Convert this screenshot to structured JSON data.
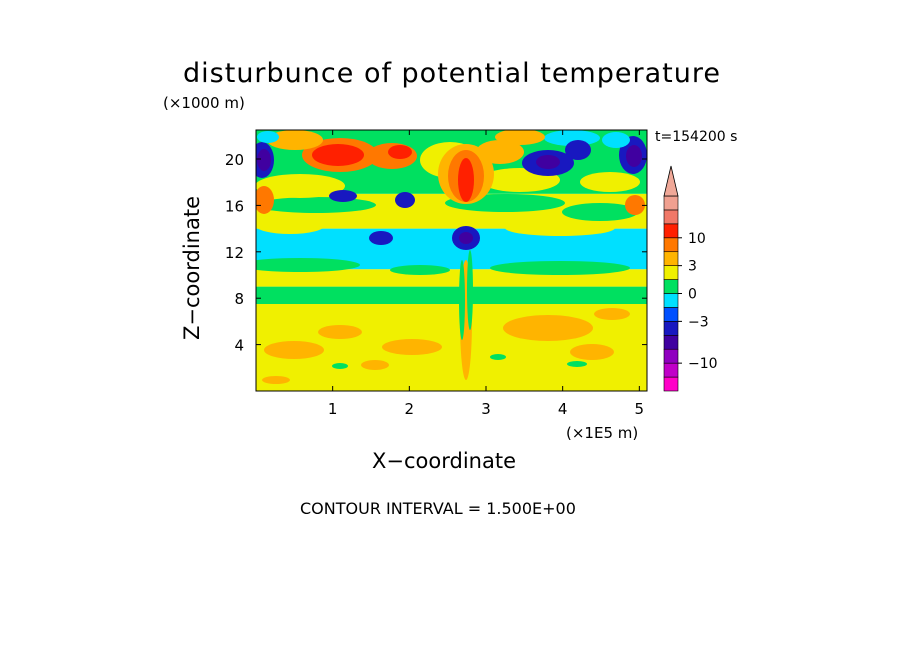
{
  "chart_data": {
    "type": "heatmap",
    "title": "disturbunce of potential temperature",
    "y_unit": "(×1000 m)",
    "x_unit": "(×1E5 m)",
    "xlabel": "X−coordinate",
    "ylabel": "Z−coordinate",
    "time_label": "t=154200 s",
    "footer": "CONTOUR INTERVAL = 1.500E+00",
    "x_ticks": [
      "1",
      "2",
      "3",
      "4",
      "5"
    ],
    "x_tick_values": [
      1,
      2,
      3,
      4,
      5
    ],
    "y_ticks": [
      "4",
      "8",
      "12",
      "16",
      "20"
    ],
    "y_tick_values": [
      4,
      8,
      12,
      16,
      20
    ],
    "xlim": [
      0,
      5.1
    ],
    "ylim": [
      0,
      22.5
    ],
    "contour_interval": 1.5,
    "colorbar": {
      "labels": [
        "10",
        "3",
        "0",
        "−3",
        "−10"
      ],
      "label_values": [
        10,
        3,
        0,
        -3,
        -10
      ],
      "levels": [
        -16.5,
        -12,
        -10.5,
        -7.5,
        -4.5,
        -3,
        -1.5,
        0,
        1.5,
        3,
        4.5,
        7.5,
        10.5,
        12,
        16.5
      ],
      "colors": [
        "#ff00c8",
        "#c000c8",
        "#9000c0",
        "#4000a0",
        "#1818c0",
        "#0050ff",
        "#00e0ff",
        "#00e060",
        "#f0f000",
        "#ffb400",
        "#ff7800",
        "#ff2000",
        "#f07868",
        "#f0a090",
        "#f0a898"
      ]
    },
    "field_bands": [
      {
        "z": [
          0,
          7.5
        ],
        "value": "0 to 3",
        "color": "#f0f000"
      },
      {
        "z": [
          7.5,
          9
        ],
        "value": "-1.5 to 0",
        "color": "#00e060"
      },
      {
        "z": [
          9,
          10.5
        ],
        "value": "0 to 1.5",
        "color": "#f0f000"
      },
      {
        "z": [
          10.5,
          14
        ],
        "value": "-3 to -1.5",
        "color": "#00e0ff"
      },
      {
        "z": [
          14,
          17
        ],
        "value": "0 to 3",
        "color": "#f0f000"
      },
      {
        "z": [
          17,
          22.5
        ],
        "value": "mixed",
        "color": "#00e060"
      }
    ]
  }
}
